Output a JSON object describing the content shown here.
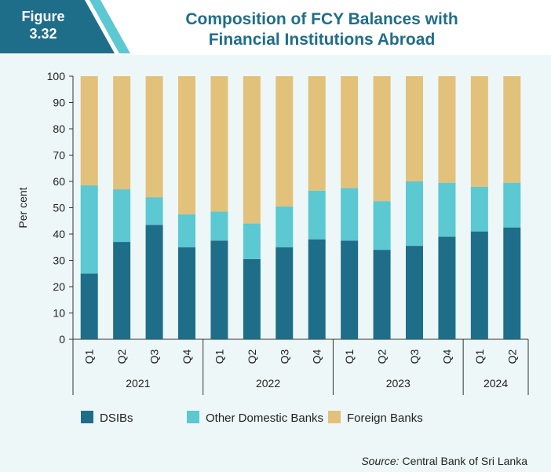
{
  "figure": {
    "line1": "Figure",
    "line2": "3.32"
  },
  "title": {
    "line1": "Composition of FCY Balances with",
    "line2": "Financial Institutions Abroad"
  },
  "source": {
    "label": "Source:",
    "text": "Central Bank of Sri Lanka"
  },
  "colors": {
    "header_dark": "#1f6e89",
    "header_light": "#5bc8d2",
    "panel_bg": "#edf7f8"
  },
  "chart_data": {
    "type": "bar",
    "stacked": true,
    "ylabel": "Per cent",
    "ylim": [
      0,
      100
    ],
    "yticks": [
      0,
      10,
      20,
      30,
      40,
      50,
      60,
      70,
      80,
      90,
      100
    ],
    "grid": false,
    "legend_position": "bottom",
    "categories": [
      "Q1",
      "Q2",
      "Q3",
      "Q4",
      "Q1",
      "Q2",
      "Q3",
      "Q4",
      "Q1",
      "Q2",
      "Q3",
      "Q4",
      "Q1",
      "Q2"
    ],
    "groups": [
      {
        "label": "2021",
        "count": 4
      },
      {
        "label": "2022",
        "count": 4
      },
      {
        "label": "2023",
        "count": 4
      },
      {
        "label": "2024",
        "count": 2
      }
    ],
    "series": [
      {
        "name": "DSIBs",
        "color": "#1f6e89",
        "values": [
          25,
          37,
          43.5,
          35,
          37.5,
          30.5,
          35,
          38,
          37.5,
          34,
          35.5,
          39,
          41,
          42.5
        ]
      },
      {
        "name": "Other Domestic Banks",
        "color": "#5bc8d2",
        "values": [
          33.5,
          20,
          10.5,
          12.5,
          11,
          13.5,
          15.5,
          18.5,
          20,
          18.5,
          24.5,
          20.5,
          17,
          17
        ]
      },
      {
        "name": "Foreign Banks",
        "color": "#e2c17b",
        "values": [
          41.5,
          43,
          46,
          52.5,
          51.5,
          56,
          49.5,
          43.5,
          42.5,
          47.5,
          40,
          40.5,
          42,
          40.5
        ]
      }
    ]
  }
}
